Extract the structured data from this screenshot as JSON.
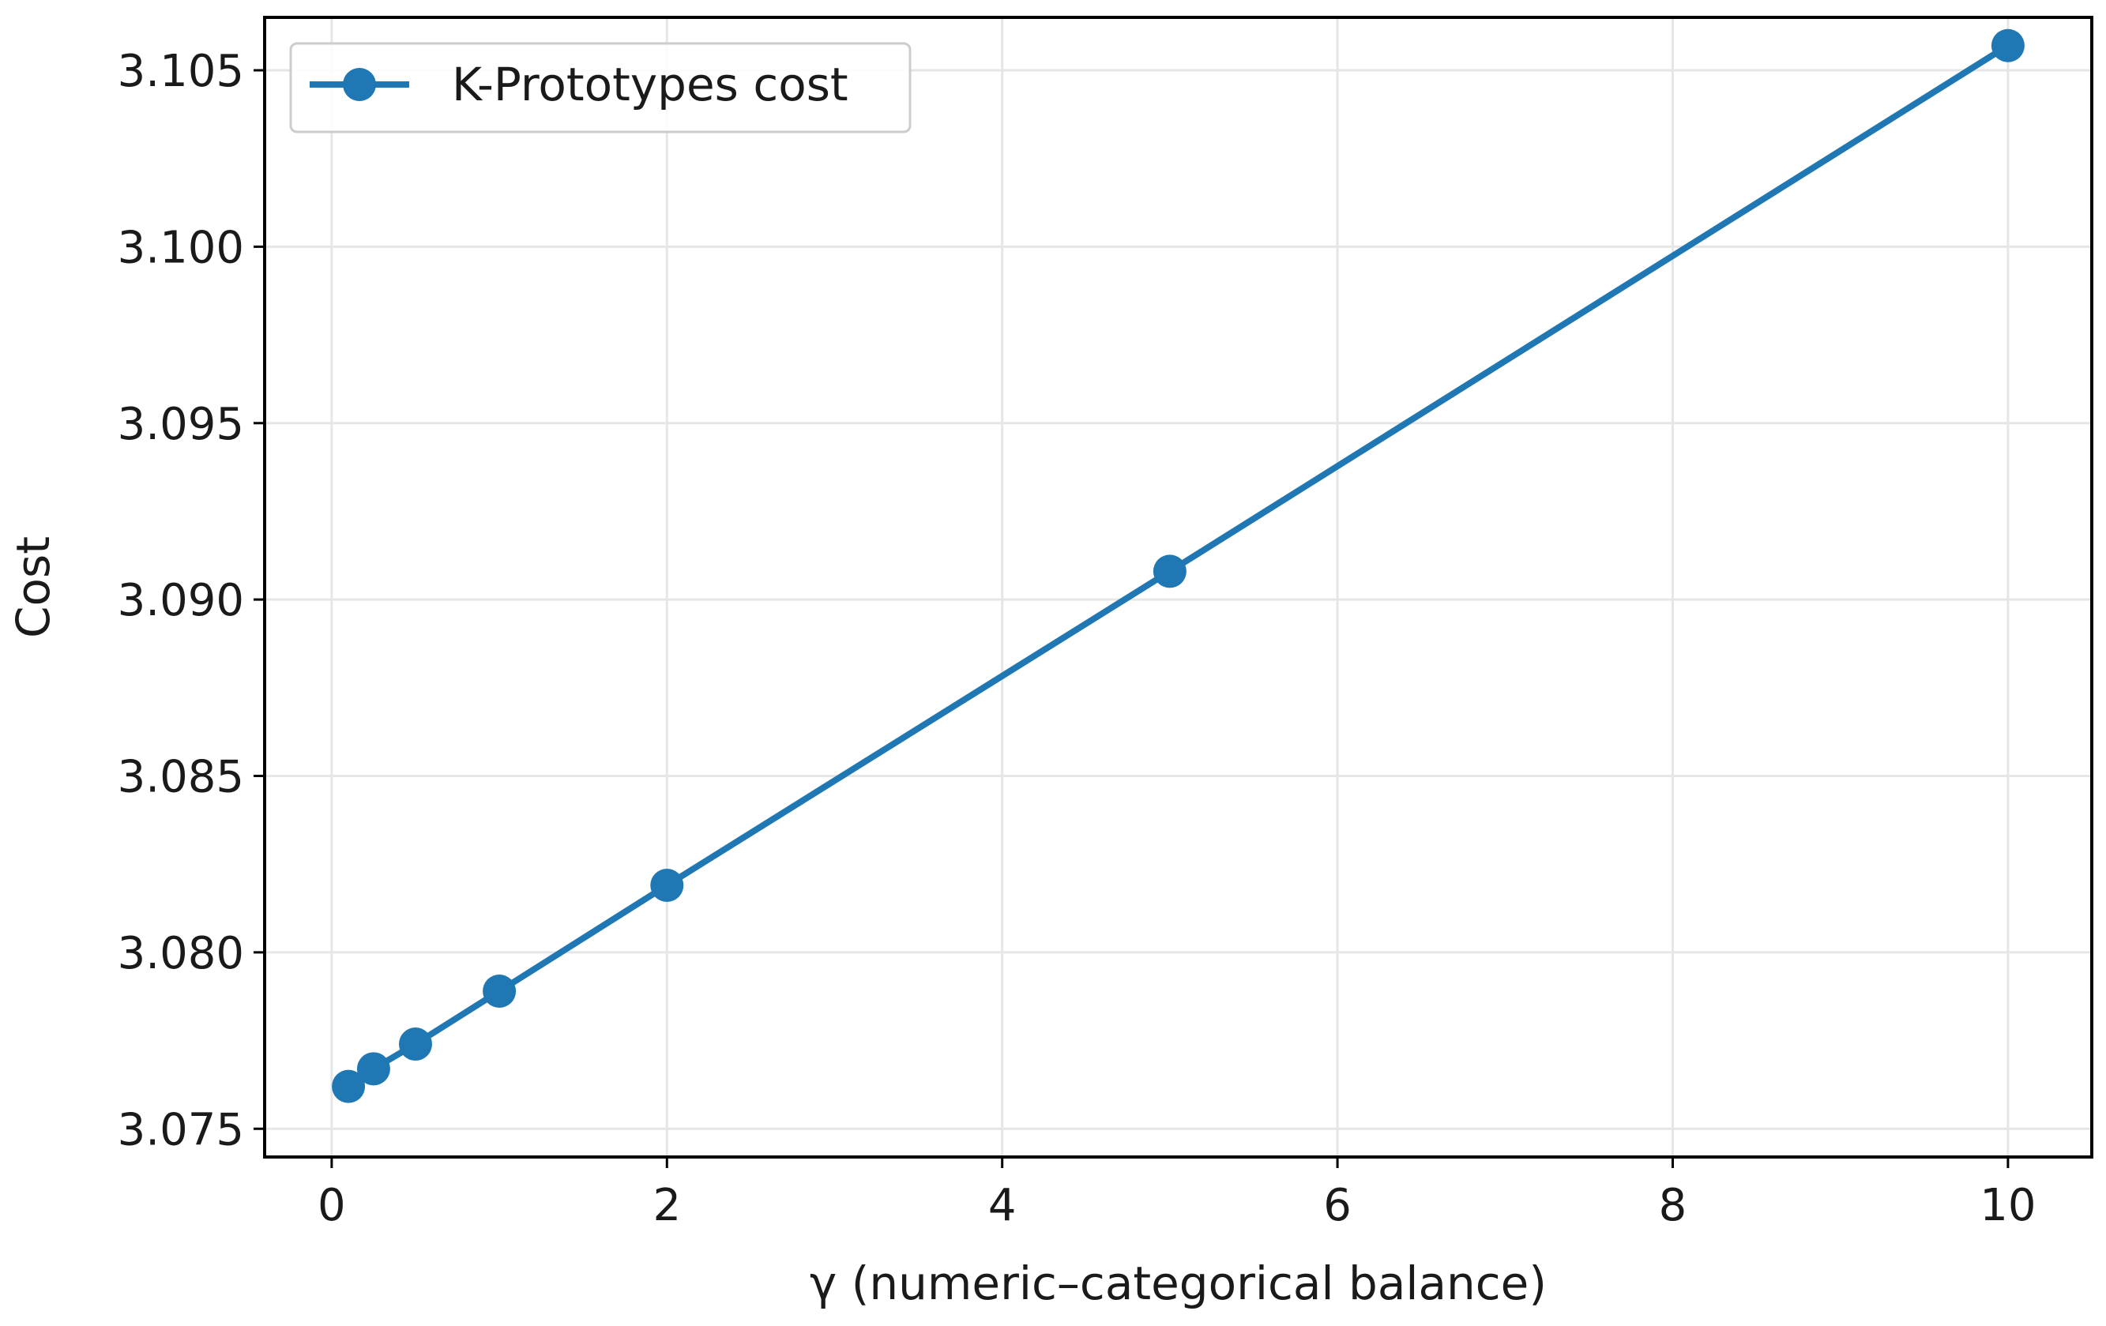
{
  "chart_data": {
    "type": "line",
    "title": "",
    "xlabel": "γ (numeric–categorical balance)",
    "ylabel": "Cost",
    "xlim": [
      -0.4,
      10.5
    ],
    "ylim": [
      3.0742,
      3.1065
    ],
    "xticks": [
      0,
      2,
      4,
      6,
      8,
      10
    ],
    "yticks": [
      3.075,
      3.08,
      3.085,
      3.09,
      3.095,
      3.1,
      3.105
    ],
    "xtick_labels": [
      "0",
      "2",
      "4",
      "6",
      "8",
      "10"
    ],
    "ytick_labels": [
      "3.075",
      "3.080",
      "3.085",
      "3.090",
      "3.095",
      "3.100",
      "3.105"
    ],
    "grid": true,
    "legend_position": "top-left",
    "series": [
      {
        "name": "K-Prototypes cost",
        "color": "#1f77b4",
        "marker": "circle",
        "x": [
          0.1,
          0.25,
          0.5,
          1,
          2,
          5,
          10
        ],
        "y": [
          3.0762,
          3.0767,
          3.0774,
          3.0789,
          3.0819,
          3.0908,
          3.1057
        ]
      }
    ]
  }
}
